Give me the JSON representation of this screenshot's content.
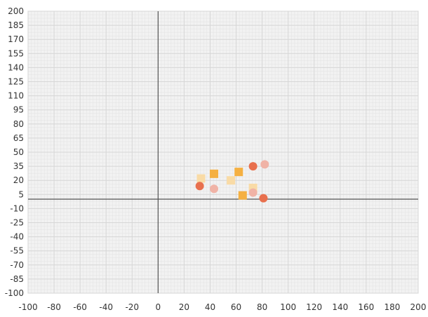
{
  "chart_data": {
    "type": "scatter",
    "title": "",
    "xlabel": "",
    "ylabel": "",
    "xlim": [
      -100,
      200
    ],
    "ylim": [
      -100,
      200
    ],
    "x_ticks": [
      -100,
      -80,
      -60,
      -40,
      -20,
      0,
      20,
      40,
      60,
      80,
      100,
      120,
      140,
      160,
      180,
      200
    ],
    "y_ticks": [
      200,
      185,
      170,
      155,
      140,
      125,
      110,
      95,
      80,
      65,
      50,
      35,
      20,
      5,
      -10,
      -25,
      -40,
      -55,
      -70,
      -85,
      -100
    ],
    "grid": true,
    "minor_grid": true,
    "series": [
      {
        "marker": "square",
        "color": "#f5b041",
        "points": [
          [
            43,
            27
          ],
          [
            62,
            29
          ],
          [
            65,
            4
          ]
        ]
      },
      {
        "marker": "square",
        "color": "#f9dba6",
        "points": [
          [
            33,
            22
          ],
          [
            56,
            20
          ],
          [
            73,
            12
          ]
        ]
      },
      {
        "marker": "circle",
        "color": "#e8704e",
        "points": [
          [
            32,
            14
          ],
          [
            73,
            35
          ],
          [
            81,
            1
          ]
        ]
      },
      {
        "marker": "circle",
        "color": "#f0b3a6",
        "points": [
          [
            43,
            11
          ],
          [
            82,
            37
          ],
          [
            73,
            7
          ]
        ]
      }
    ]
  },
  "colors": {
    "background": "#f2f2f2",
    "grid": "#e2e2e2",
    "axis": "#555555",
    "frame": "#cccccc"
  }
}
